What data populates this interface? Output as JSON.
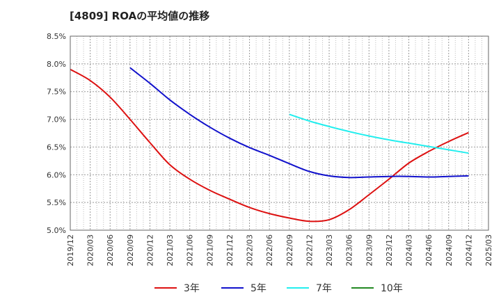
{
  "title": "[4809]  ROAの平均値の推移",
  "chart_data": {
    "type": "line",
    "title": "[4809]  ROAの平均値の推移",
    "xlabel": "",
    "ylabel": "",
    "x": [
      "2019/12",
      "2020/03",
      "2020/06",
      "2020/09",
      "2020/12",
      "2021/03",
      "2021/06",
      "2021/09",
      "2021/12",
      "2022/03",
      "2022/06",
      "2022/09",
      "2022/12",
      "2023/03",
      "2023/06",
      "2023/09",
      "2023/12",
      "2024/03",
      "2024/06",
      "2024/09",
      "2024/12",
      "2025/03"
    ],
    "ylim": [
      5.0,
      8.5
    ],
    "yticks": [
      "5.0%",
      "5.5%",
      "6.0%",
      "6.5%",
      "7.0%",
      "7.5%",
      "8.0%",
      "8.5%"
    ],
    "grid": true,
    "legend_position": "bottom",
    "series": [
      {
        "name": "3年",
        "color": "#dd1111",
        "values": [
          7.9,
          7.7,
          7.4,
          7.0,
          6.58,
          6.18,
          5.92,
          5.72,
          5.56,
          5.41,
          5.3,
          5.22,
          5.16,
          5.19,
          5.37,
          5.64,
          5.92,
          6.21,
          6.42,
          6.6,
          6.76,
          null
        ]
      },
      {
        "name": "5年",
        "color": "#1111cc",
        "values": [
          null,
          null,
          null,
          7.93,
          7.65,
          7.35,
          7.09,
          6.86,
          6.66,
          6.49,
          6.35,
          6.2,
          6.06,
          5.98,
          5.95,
          5.96,
          5.97,
          5.97,
          5.96,
          5.97,
          5.98,
          null
        ]
      },
      {
        "name": "7年",
        "color": "#22eeee",
        "values": [
          null,
          null,
          null,
          null,
          null,
          null,
          null,
          null,
          null,
          null,
          null,
          7.09,
          6.97,
          6.87,
          6.78,
          6.7,
          6.63,
          6.57,
          6.51,
          6.45,
          6.39,
          null
        ]
      },
      {
        "name": "10年",
        "color": "#228822",
        "values": [
          null,
          null,
          null,
          null,
          null,
          null,
          null,
          null,
          null,
          null,
          null,
          null,
          null,
          null,
          null,
          null,
          null,
          null,
          null,
          null,
          null,
          null
        ]
      }
    ]
  }
}
